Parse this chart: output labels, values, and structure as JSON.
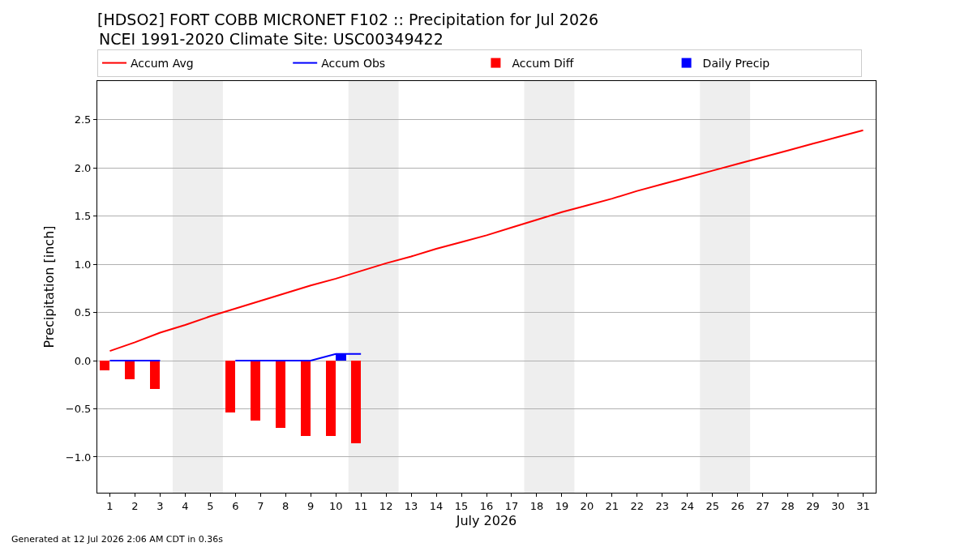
{
  "chart_data": {
    "type": "line",
    "title": "[HDSO2] FORT COBB MICRONET F102 :: Precipitation for Jul 2026",
    "subtitle": "NCEI 1991-2020 Climate Site: USC00349422",
    "xlabel": "July 2026",
    "ylabel": "Precipitation [inch]",
    "annotations": [
      "Generated at 12 Jul 2026 2:06 AM CDT in 0.36s"
    ],
    "x": [
      1,
      2,
      3,
      4,
      5,
      6,
      7,
      8,
      9,
      10,
      11,
      12,
      13,
      14,
      15,
      16,
      17,
      18,
      19,
      20,
      21,
      22,
      23,
      24,
      25,
      26,
      27,
      28,
      29,
      30,
      31
    ],
    "xlim": [
      0.5,
      31.5
    ],
    "xticks": [
      1,
      2,
      3,
      4,
      5,
      6,
      7,
      8,
      9,
      10,
      11,
      12,
      13,
      14,
      15,
      16,
      17,
      18,
      19,
      20,
      21,
      22,
      23,
      24,
      25,
      26,
      27,
      28,
      29,
      30,
      31
    ],
    "ylim": [
      -1.37,
      2.9
    ],
    "yticks": [
      {
        "value": -1.0,
        "label": "−1.0"
      },
      {
        "value": -0.5,
        "label": "−0.5"
      },
      {
        "value": 0.0,
        "label": "0.0"
      },
      {
        "value": 0.5,
        "label": "0.5"
      },
      {
        "value": 1.0,
        "label": "1.0"
      },
      {
        "value": 1.5,
        "label": "1.5"
      },
      {
        "value": 2.0,
        "label": "2.0"
      },
      {
        "value": 2.5,
        "label": "2.5"
      }
    ],
    "grid": "y",
    "legend": "top",
    "bands": [
      {
        "axis": "x",
        "from": 3.5,
        "to": 5.5,
        "color": "#eeeeee"
      },
      {
        "axis": "x",
        "from": 10.5,
        "to": 12.5,
        "color": "#eeeeee"
      },
      {
        "axis": "x",
        "from": 17.5,
        "to": 19.5,
        "color": "#eeeeee"
      },
      {
        "axis": "x",
        "from": 24.5,
        "to": 26.5,
        "color": "#eeeeee"
      }
    ],
    "series": [
      {
        "name": "Accum Avg",
        "color": "#ff0000",
        "values": [
          0.1,
          0.19,
          0.29,
          0.37,
          0.46,
          0.54,
          0.62,
          0.7,
          0.78,
          0.85,
          0.93,
          1.01,
          1.08,
          1.16,
          1.23,
          1.3,
          1.38,
          1.46,
          1.54,
          1.61,
          1.68,
          1.76,
          1.83,
          1.9,
          1.97,
          2.04,
          2.11,
          2.18,
          2.25,
          2.32,
          2.39
        ]
      },
      {
        "name": "Accum Obs",
        "color": "#0000ff",
        "values": [
          0.0,
          0.0,
          0.0,
          null,
          null,
          0.0,
          0.0,
          0.0,
          0.0,
          0.07,
          0.07,
          null,
          null,
          null,
          null,
          null,
          null,
          null,
          null,
          null,
          null,
          null,
          null,
          null,
          null,
          null,
          null,
          null,
          null,
          null,
          null
        ]
      },
      {
        "name": "Accum Diff",
        "type": "bar",
        "color": "#ff0000",
        "values": [
          -0.1,
          -0.19,
          -0.29,
          null,
          null,
          -0.54,
          -0.62,
          -0.7,
          -0.78,
          -0.78,
          -0.86,
          null,
          null,
          null,
          null,
          null,
          null,
          null,
          null,
          null,
          null,
          null,
          null,
          null,
          null,
          null,
          null,
          null,
          null,
          null,
          null
        ]
      },
      {
        "name": "Daily Precip",
        "type": "bar",
        "color": "#0000ff",
        "values": [
          null,
          null,
          null,
          null,
          null,
          null,
          null,
          null,
          null,
          0.07,
          null,
          null,
          null,
          null,
          null,
          null,
          null,
          null,
          null,
          null,
          null,
          null,
          null,
          null,
          null,
          null,
          null,
          null,
          null,
          null,
          null
        ]
      }
    ]
  }
}
